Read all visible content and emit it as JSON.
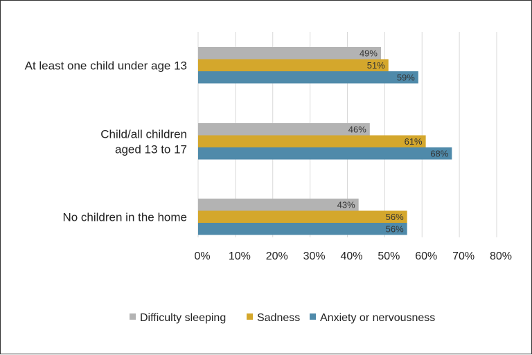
{
  "chart_data": {
    "type": "bar",
    "orientation": "horizontal",
    "categories": [
      [
        "At least one child under age 13"
      ],
      [
        "Child/all children",
        "aged 13 to 17"
      ],
      [
        "No children in the home"
      ]
    ],
    "series": [
      {
        "name": "Difficulty sleeping",
        "color": "#b3b3b3",
        "values": [
          49,
          46,
          43
        ],
        "labels": [
          "49%",
          "46%",
          "43%"
        ]
      },
      {
        "name": "Sadness",
        "color": "#d4a72c",
        "values": [
          51,
          61,
          56
        ],
        "labels": [
          "51%",
          "61%",
          "56%"
        ]
      },
      {
        "name": "Anxiety or nervousness",
        "color": "#4f8aaa",
        "values": [
          59,
          68,
          56
        ],
        "labels": [
          "59%",
          "68%",
          "56%"
        ]
      }
    ],
    "xlim": [
      0,
      80
    ],
    "xticks": [
      "0%",
      "10%",
      "20%",
      "30%",
      "40%",
      "50%",
      "60%",
      "70%",
      "80%"
    ],
    "grid": true,
    "legend_position": "bottom"
  }
}
